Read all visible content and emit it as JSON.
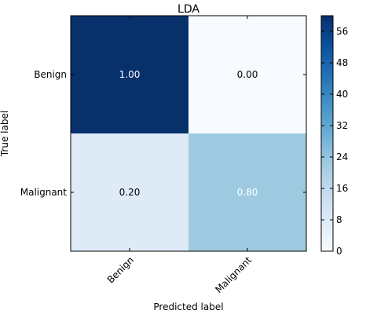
{
  "chart_data": {
    "type": "heatmap",
    "title": "LDA",
    "xlabel": "Predicted label",
    "ylabel": "True label",
    "x_categories": [
      "Benign",
      "Malignant"
    ],
    "y_categories": [
      "Benign",
      "Malignant"
    ],
    "cell_labels": [
      [
        "1.00",
        "0.00"
      ],
      [
        "0.20",
        "0.80"
      ]
    ],
    "cell_colors": [
      [
        "#08306b",
        "#f7fbff"
      ],
      [
        "#deebf7",
        "#9ecae1"
      ]
    ],
    "cell_text_colors": [
      [
        "#ffffff",
        "#000000"
      ],
      [
        "#000000",
        "#ffffff"
      ]
    ],
    "colorbar": {
      "range": [
        0,
        60
      ],
      "ticks": [
        0,
        8,
        16,
        24,
        32,
        40,
        48,
        56
      ],
      "colormap": "Blues",
      "colors": [
        "#f7fbff",
        "#deebf7",
        "#c6dbef",
        "#9ecae1",
        "#6baed6",
        "#4292c6",
        "#2171b5",
        "#08519c",
        "#08306b"
      ]
    },
    "grid": false
  }
}
